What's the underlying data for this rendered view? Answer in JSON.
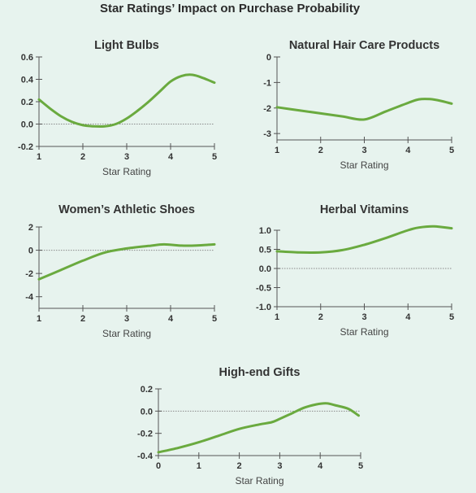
{
  "title": "Star Ratings’ Impact on Purchase Probability",
  "colors": {
    "background": "#e7f3ee",
    "line": "#6aaa3f",
    "axis": "#555555",
    "zero_line": "#8a8a8a"
  },
  "chart_data": [
    {
      "type": "line",
      "title": "Light Bulbs",
      "xlabel": "Star Rating",
      "xlim": [
        1,
        5
      ],
      "ylim": [
        -0.2,
        0.6
      ],
      "xticks": [
        "1",
        "2",
        "3",
        "4",
        "5"
      ],
      "yticks": [
        "0.6",
        "0.4",
        "0.2",
        "0.0",
        "-0.2"
      ],
      "x": [
        1.0,
        1.25,
        1.5,
        1.75,
        2.0,
        2.25,
        2.5,
        2.75,
        3.0,
        3.25,
        3.5,
        3.75,
        4.0,
        4.25,
        4.5,
        4.75,
        5.0
      ],
      "y": [
        0.22,
        0.14,
        0.07,
        0.02,
        -0.01,
        -0.02,
        -0.02,
        0.0,
        0.05,
        0.12,
        0.2,
        0.29,
        0.38,
        0.43,
        0.44,
        0.41,
        0.37
      ]
    },
    {
      "type": "line",
      "title": "Natural Hair Care Products",
      "xlabel": "Star Rating",
      "xlim": [
        1,
        5
      ],
      "ylim": [
        -3.25,
        0
      ],
      "xticks": [
        "1",
        "2",
        "3",
        "4",
        "5"
      ],
      "yticks": [
        "0",
        "-1",
        "-2",
        "-3"
      ],
      "x": [
        1.0,
        1.5,
        2.0,
        2.5,
        3.0,
        3.5,
        4.0,
        4.25,
        4.5,
        4.75,
        5.0
      ],
      "y": [
        -1.97,
        -2.09,
        -2.21,
        -2.33,
        -2.45,
        -2.13,
        -1.8,
        -1.66,
        -1.65,
        -1.72,
        -1.83
      ]
    },
    {
      "type": "line",
      "title": "Women’s Athletic Shoes",
      "xlabel": "Star Rating",
      "xlim": [
        1,
        5
      ],
      "ylim": [
        -5,
        2
      ],
      "xticks": [
        "1",
        "2",
        "3",
        "4",
        "5"
      ],
      "yticks": [
        "2",
        "0",
        "-2",
        "-4"
      ],
      "x": [
        1.0,
        1.5,
        2.0,
        2.5,
        3.0,
        3.5,
        3.85,
        4.25,
        4.6,
        5.0
      ],
      "y": [
        -2.5,
        -1.7,
        -0.9,
        -0.2,
        0.15,
        0.37,
        0.5,
        0.4,
        0.41,
        0.5
      ]
    },
    {
      "type": "line",
      "title": "Herbal Vitamins",
      "xlabel": "Star Rating",
      "xlim": [
        1,
        5
      ],
      "ylim": [
        -1.0,
        1.0
      ],
      "xticks": [
        "1",
        "2",
        "3",
        "4",
        "5"
      ],
      "yticks": [
        "1.0",
        "0.5",
        "0.0",
        "-0.5",
        "-1.0"
      ],
      "x": [
        1.0,
        1.5,
        2.0,
        2.5,
        3.0,
        3.5,
        4.0,
        4.25,
        4.6,
        5.0
      ],
      "y": [
        0.45,
        0.42,
        0.42,
        0.48,
        0.62,
        0.8,
        1.0,
        1.07,
        1.1,
        1.05
      ]
    },
    {
      "type": "line",
      "title": "High-end Gifts",
      "xlabel": "Star Rating",
      "xlim": [
        0,
        5
      ],
      "ylim": [
        -0.4,
        0.2
      ],
      "xticks": [
        "0",
        "1",
        "2",
        "3",
        "4",
        "5"
      ],
      "yticks": [
        "0.2",
        "0.0",
        "-0.2",
        "-0.4"
      ],
      "x": [
        0.0,
        0.5,
        1.0,
        1.5,
        2.0,
        2.5,
        2.8,
        3.0,
        3.3,
        3.6,
        3.9,
        4.15,
        4.4,
        4.7,
        4.95
      ],
      "y": [
        -0.37,
        -0.33,
        -0.28,
        -0.22,
        -0.16,
        -0.12,
        -0.1,
        -0.07,
        -0.02,
        0.03,
        0.06,
        0.07,
        0.05,
        0.02,
        -0.04
      ]
    }
  ]
}
